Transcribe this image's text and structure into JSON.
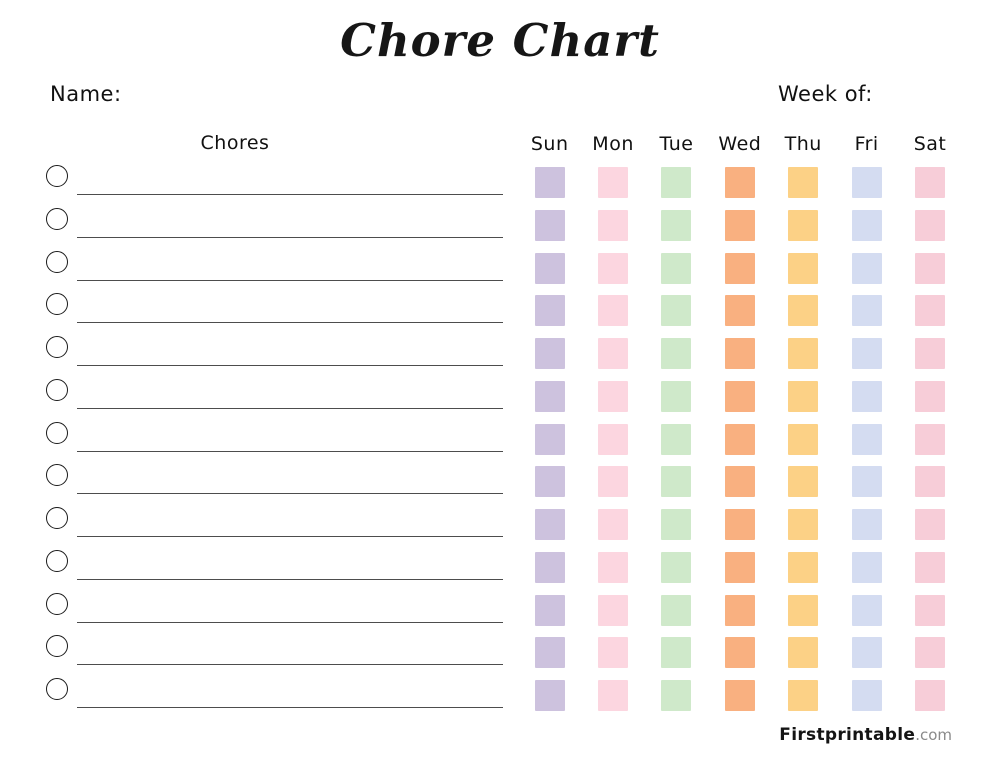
{
  "page": {
    "title": "Chore Chart",
    "name_label": "Name:",
    "week_of_label": "Week of:",
    "chores_header": "Chores",
    "row_count": 13,
    "background_color": "#ffffff"
  },
  "days": [
    {
      "label": "Sun",
      "color": "#cdc2de"
    },
    {
      "label": "Mon",
      "color": "#fcd6e0"
    },
    {
      "label": "Tue",
      "color": "#cfe9ca"
    },
    {
      "label": "Wed",
      "color": "#f9b080"
    },
    {
      "label": "Thu",
      "color": "#fcd186"
    },
    {
      "label": "Fri",
      "color": "#d4dcf1"
    },
    {
      "label": "Sat",
      "color": "#f7cdd8"
    }
  ],
  "footer": {
    "brand": "Firstprintable",
    "suffix": ".com"
  }
}
